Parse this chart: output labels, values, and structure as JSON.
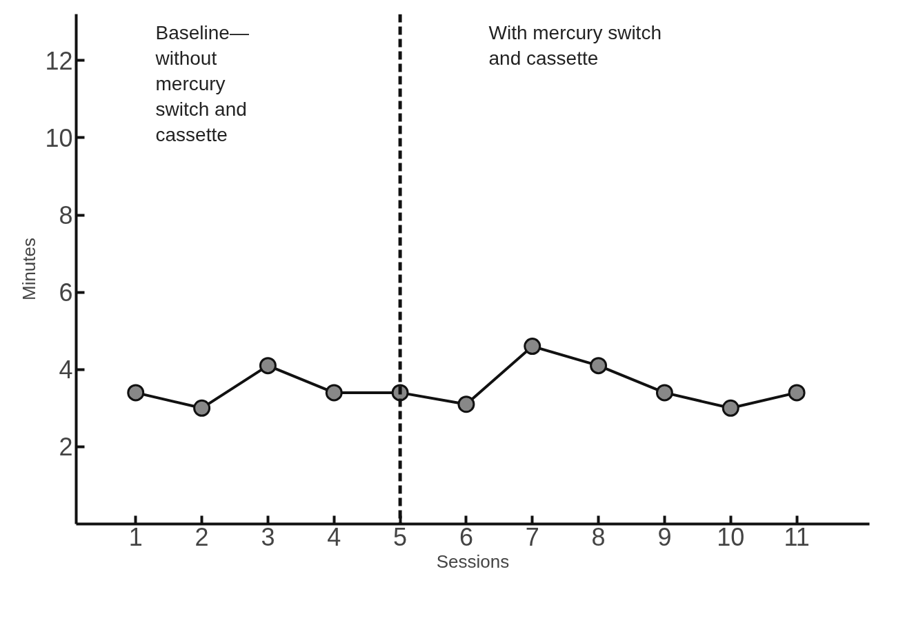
{
  "chart_data": {
    "type": "line",
    "xlabel": "Sessions",
    "ylabel": "Minutes",
    "x": [
      1,
      2,
      3,
      4,
      5,
      6,
      7,
      8,
      9,
      10,
      11
    ],
    "series": [
      {
        "color": "#111111",
        "values": [
          3.4,
          3.0,
          4.1,
          3.4,
          3.4,
          3.1,
          4.6,
          4.1,
          3.4,
          3.0,
          3.4
        ]
      }
    ],
    "xlim": [
      0.1,
      12.1
    ],
    "ylim": [
      0,
      13.2
    ],
    "xticks": [
      1,
      2,
      3,
      4,
      5,
      6,
      7,
      8,
      9,
      10,
      11
    ],
    "yticks": [
      2,
      4,
      6,
      8,
      10,
      12
    ],
    "ref_lines": [
      {
        "axis": "x",
        "value": 5,
        "color": "#111111",
        "line_style": "dashed"
      }
    ],
    "annotations": [
      "Baseline—\nwithout\nmercury\nswitch and\ncassette",
      "With mercury switch\nand cassette"
    ],
    "marker": "circle",
    "line_style": "solid",
    "grid": false
  }
}
